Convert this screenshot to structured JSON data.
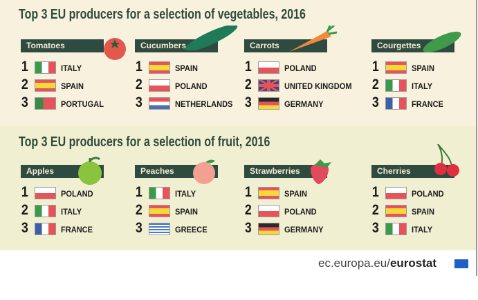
{
  "vegetables": {
    "title": "Top 3 EU producers for a selection of vegetables, 2016",
    "items": [
      {
        "name": "Tomatoes",
        "icon": "tomato-icon",
        "ranks": [
          {
            "rank": "1",
            "country": "ITALY",
            "flag": "it"
          },
          {
            "rank": "2",
            "country": "SPAIN",
            "flag": "es"
          },
          {
            "rank": "3",
            "country": "PORTUGAL",
            "flag": "pt"
          }
        ]
      },
      {
        "name": "Cucumbers",
        "icon": "cucumber-icon",
        "ranks": [
          {
            "rank": "1",
            "country": "SPAIN",
            "flag": "es"
          },
          {
            "rank": "2",
            "country": "POLAND",
            "flag": "pl"
          },
          {
            "rank": "3",
            "country": "NETHERLANDS",
            "flag": "nl"
          }
        ]
      },
      {
        "name": "Carrots",
        "icon": "carrot-icon",
        "ranks": [
          {
            "rank": "1",
            "country": "POLAND",
            "flag": "pl"
          },
          {
            "rank": "2",
            "country": "UNITED KINGDOM",
            "flag": "gb"
          },
          {
            "rank": "3",
            "country": "GERMANY",
            "flag": "de"
          }
        ]
      },
      {
        "name": "Courgettes",
        "icon": "courgette-icon",
        "ranks": [
          {
            "rank": "1",
            "country": "SPAIN",
            "flag": "es"
          },
          {
            "rank": "2",
            "country": "ITALY",
            "flag": "it"
          },
          {
            "rank": "3",
            "country": "FRANCE",
            "flag": "fr"
          }
        ]
      }
    ]
  },
  "fruit": {
    "title": "Top 3 EU producers for a selection of fruit, 2016",
    "items": [
      {
        "name": "Apples",
        "icon": "apple-icon",
        "ranks": [
          {
            "rank": "1",
            "country": "POLAND",
            "flag": "pl"
          },
          {
            "rank": "2",
            "country": "ITALY",
            "flag": "it"
          },
          {
            "rank": "3",
            "country": "FRANCE",
            "flag": "fr"
          }
        ]
      },
      {
        "name": "Peaches",
        "icon": "peach-icon",
        "ranks": [
          {
            "rank": "1",
            "country": "ITALY",
            "flag": "it"
          },
          {
            "rank": "2",
            "country": "SPAIN",
            "flag": "es"
          },
          {
            "rank": "3",
            "country": "GREECE",
            "flag": "gr"
          }
        ]
      },
      {
        "name": "Strawberries",
        "icon": "strawberry-icon",
        "ranks": [
          {
            "rank": "1",
            "country": "SPAIN",
            "flag": "es"
          },
          {
            "rank": "2",
            "country": "POLAND",
            "flag": "pl"
          },
          {
            "rank": "3",
            "country": "GERMANY",
            "flag": "de"
          }
        ]
      },
      {
        "name": "Cherries",
        "icon": "cherries-icon",
        "ranks": [
          {
            "rank": "1",
            "country": "POLAND",
            "flag": "pl"
          },
          {
            "rank": "2",
            "country": "SPAIN",
            "flag": "es"
          },
          {
            "rank": "3",
            "country": "ITALY",
            "flag": "it"
          }
        ]
      }
    ]
  },
  "source": {
    "domain": "ec.europa.eu/",
    "brand": "eurostat"
  }
}
